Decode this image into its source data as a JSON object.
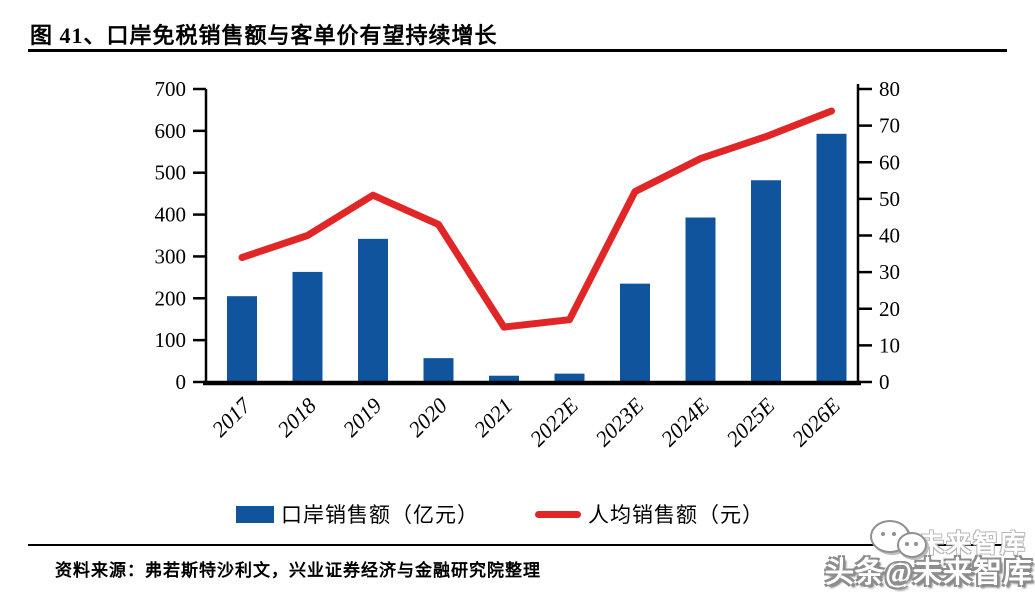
{
  "header": {
    "title": "图 41、口岸免税销售额与客单价有望持续增长"
  },
  "chart_data": {
    "type": "bar",
    "subtype": "bar+line-dual-axis",
    "title": "口岸免税销售额与客单价有望持续增长",
    "categories": [
      "2017",
      "2018",
      "2019",
      "2020",
      "2021",
      "2022E",
      "2023E",
      "2024E",
      "2025E",
      "2026E"
    ],
    "series": [
      {
        "name": "口岸销售额（亿元）",
        "type": "bar",
        "axis": "left",
        "color": "#10549E",
        "values": [
          205,
          263,
          342,
          57,
          15,
          20,
          235,
          393,
          482,
          593
        ]
      },
      {
        "name": "人均销售额（元）",
        "type": "line",
        "axis": "right",
        "color": "#E02626",
        "values": [
          34,
          40,
          51,
          43,
          15,
          17,
          52,
          61,
          67,
          74
        ]
      }
    ],
    "left_axis": {
      "min": 0,
      "max": 700,
      "step": 100,
      "tick_labels": [
        "0",
        "100",
        "200",
        "300",
        "400",
        "500",
        "600",
        "700"
      ]
    },
    "right_axis": {
      "min": 0,
      "max": 80,
      "step": 10,
      "tick_labels": [
        "0",
        "10",
        "20",
        "30",
        "40",
        "50",
        "60",
        "70",
        "80"
      ]
    },
    "grid": false,
    "legend_position": "bottom"
  },
  "footer": {
    "source": "资料来源：弗若斯特沙利文，兴业证券经济与金融研究院整理"
  },
  "watermark": {
    "echo": "未来智库",
    "main": "头条@未来智库",
    "icon": "wechat-icon"
  },
  "colors": {
    "bar": "#10549E",
    "line": "#E02626",
    "text": "#000000",
    "rule": "#000000"
  }
}
